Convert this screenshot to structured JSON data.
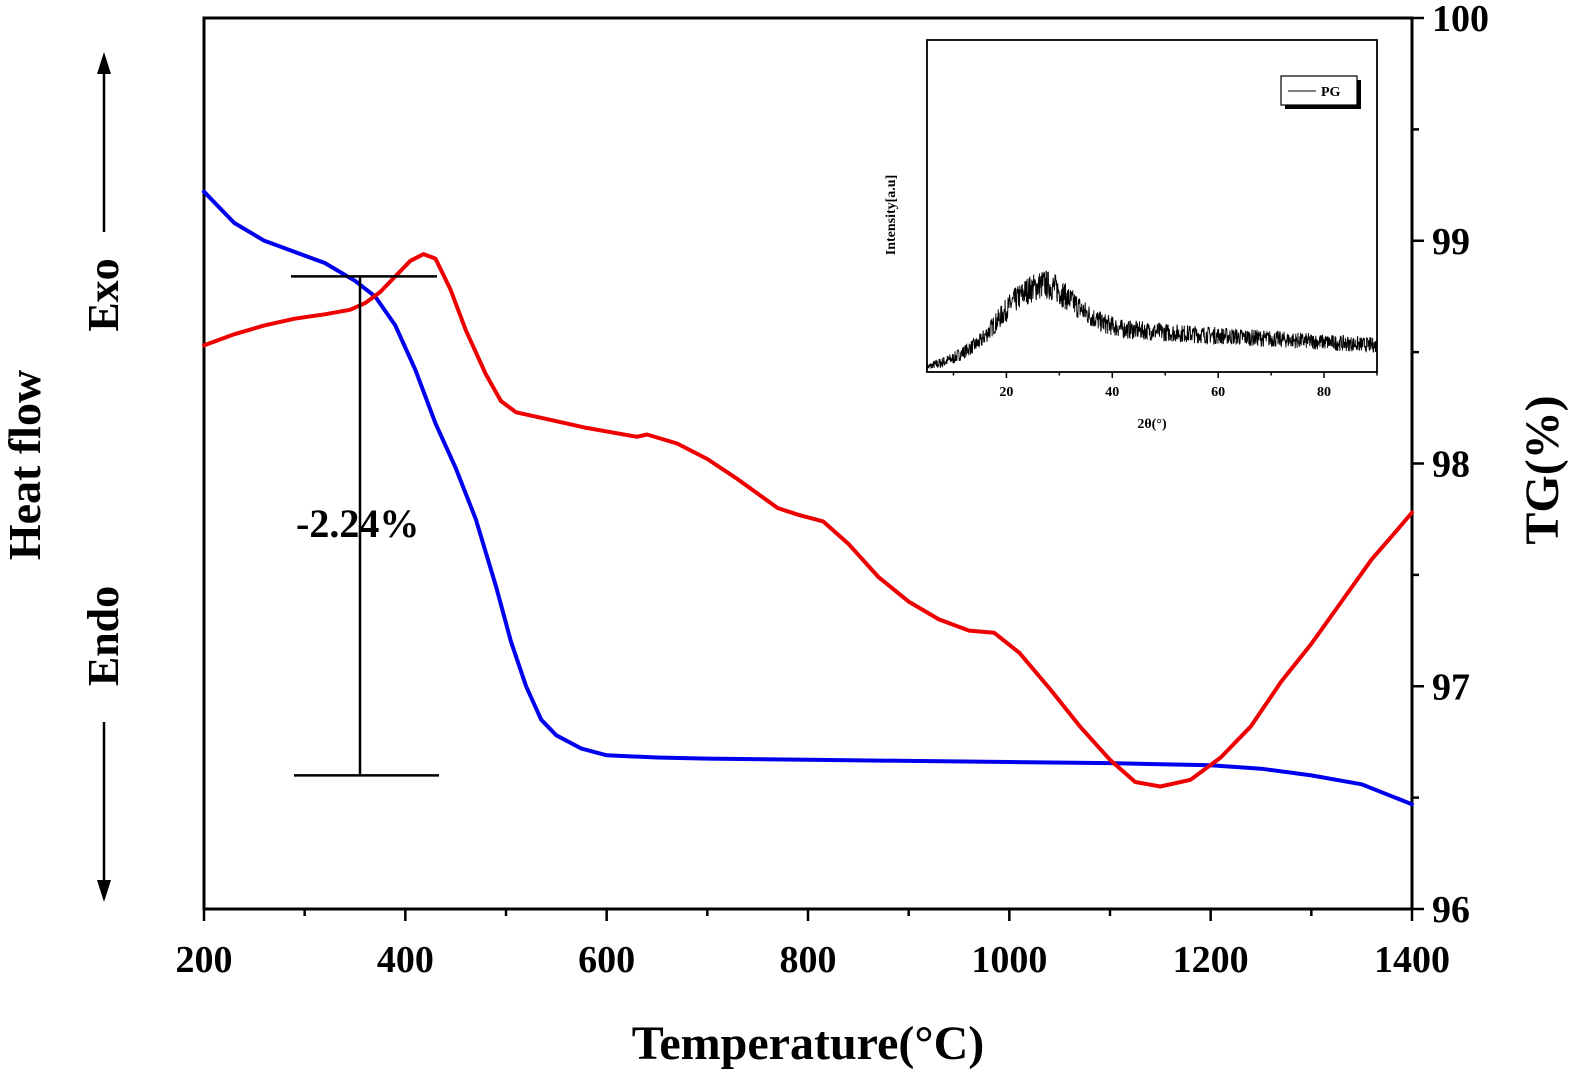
{
  "chart_data": {
    "type": "line",
    "xlabel": "Temperature(°C)",
    "x_ticks": [
      "200",
      "400",
      "600",
      "800",
      "1000",
      "1200",
      "1400"
    ],
    "xlim": [
      200,
      1400
    ],
    "left_axis": {
      "label": "Heat flow",
      "exo_label": "Exo",
      "endo_label": "Endo",
      "ticks_shown": false
    },
    "right_axis": {
      "label": "TG(%)",
      "ticks": [
        "96",
        "97",
        "98",
        "99",
        "100"
      ],
      "ylim": [
        96,
        100
      ]
    },
    "annotation": {
      "text": "-2.24%",
      "from_tg": 98.84,
      "to_tg": 96.6
    },
    "series": [
      {
        "axis": "right",
        "color": "#0000ee",
        "points": [
          [
            200,
            99.22
          ],
          [
            230,
            99.08
          ],
          [
            260,
            99.0
          ],
          [
            290,
            98.95
          ],
          [
            320,
            98.9
          ],
          [
            350,
            98.82
          ],
          [
            370,
            98.75
          ],
          [
            390,
            98.62
          ],
          [
            410,
            98.42
          ],
          [
            430,
            98.18
          ],
          [
            450,
            97.98
          ],
          [
            470,
            97.75
          ],
          [
            490,
            97.45
          ],
          [
            505,
            97.2
          ],
          [
            520,
            97.0
          ],
          [
            535,
            96.85
          ],
          [
            550,
            96.78
          ],
          [
            575,
            96.72
          ],
          [
            600,
            96.69
          ],
          [
            650,
            96.68
          ],
          [
            700,
            96.675
          ],
          [
            800,
            96.67
          ],
          [
            900,
            96.665
          ],
          [
            1000,
            96.66
          ],
          [
            1100,
            96.655
          ],
          [
            1200,
            96.645
          ],
          [
            1250,
            96.63
          ],
          [
            1300,
            96.6
          ],
          [
            1350,
            96.56
          ],
          [
            1400,
            96.47
          ]
        ]
      },
      {
        "axis": "left",
        "color": "#ee0000",
        "points": [
          [
            200,
            98.53
          ],
          [
            230,
            98.58
          ],
          [
            260,
            98.62
          ],
          [
            290,
            98.65
          ],
          [
            320,
            98.67
          ],
          [
            345,
            98.69
          ],
          [
            360,
            98.72
          ],
          [
            375,
            98.77
          ],
          [
            390,
            98.84
          ],
          [
            405,
            98.91
          ],
          [
            418,
            98.94
          ],
          [
            430,
            98.92
          ],
          [
            445,
            98.78
          ],
          [
            460,
            98.6
          ],
          [
            480,
            98.4
          ],
          [
            495,
            98.28
          ],
          [
            510,
            98.23
          ],
          [
            540,
            98.2
          ],
          [
            580,
            98.16
          ],
          [
            630,
            98.12
          ],
          [
            640,
            98.13
          ],
          [
            670,
            98.09
          ],
          [
            700,
            98.02
          ],
          [
            730,
            97.93
          ],
          [
            770,
            97.8
          ],
          [
            790,
            97.77
          ],
          [
            815,
            97.74
          ],
          [
            840,
            97.64
          ],
          [
            870,
            97.49
          ],
          [
            900,
            97.38
          ],
          [
            930,
            97.3
          ],
          [
            960,
            97.25
          ],
          [
            985,
            97.24
          ],
          [
            1010,
            97.15
          ],
          [
            1040,
            96.99
          ],
          [
            1070,
            96.82
          ],
          [
            1100,
            96.67
          ],
          [
            1125,
            96.57
          ],
          [
            1150,
            96.55
          ],
          [
            1180,
            96.58
          ],
          [
            1210,
            96.68
          ],
          [
            1240,
            96.82
          ],
          [
            1270,
            97.02
          ],
          [
            1300,
            97.19
          ],
          [
            1330,
            97.38
          ],
          [
            1360,
            97.57
          ],
          [
            1385,
            97.7
          ],
          [
            1400,
            97.78
          ]
        ]
      }
    ],
    "inset": {
      "xlabel": "2θ(°)",
      "ylabel": "Intensity[a.u]",
      "x_ticks": [
        "20",
        "40",
        "60",
        "80"
      ],
      "xlim": [
        5,
        90
      ],
      "ylim": [
        0,
        1
      ],
      "legend_label": "PG",
      "legend_position": "top-right",
      "series": [
        {
          "name": "PG",
          "color": "#000000",
          "points": [
            [
              5,
              0.0
            ],
            [
              10,
              0.03
            ],
            [
              15,
              0.08
            ],
            [
              18,
              0.14
            ],
            [
              21,
              0.2
            ],
            [
              24,
              0.24
            ],
            [
              27,
              0.26
            ],
            [
              29,
              0.25
            ],
            [
              32,
              0.21
            ],
            [
              35,
              0.17
            ],
            [
              38,
              0.14
            ],
            [
              42,
              0.12
            ],
            [
              50,
              0.11
            ],
            [
              60,
              0.1
            ],
            [
              70,
              0.09
            ],
            [
              80,
              0.08
            ],
            [
              90,
              0.07
            ]
          ]
        }
      ]
    }
  }
}
